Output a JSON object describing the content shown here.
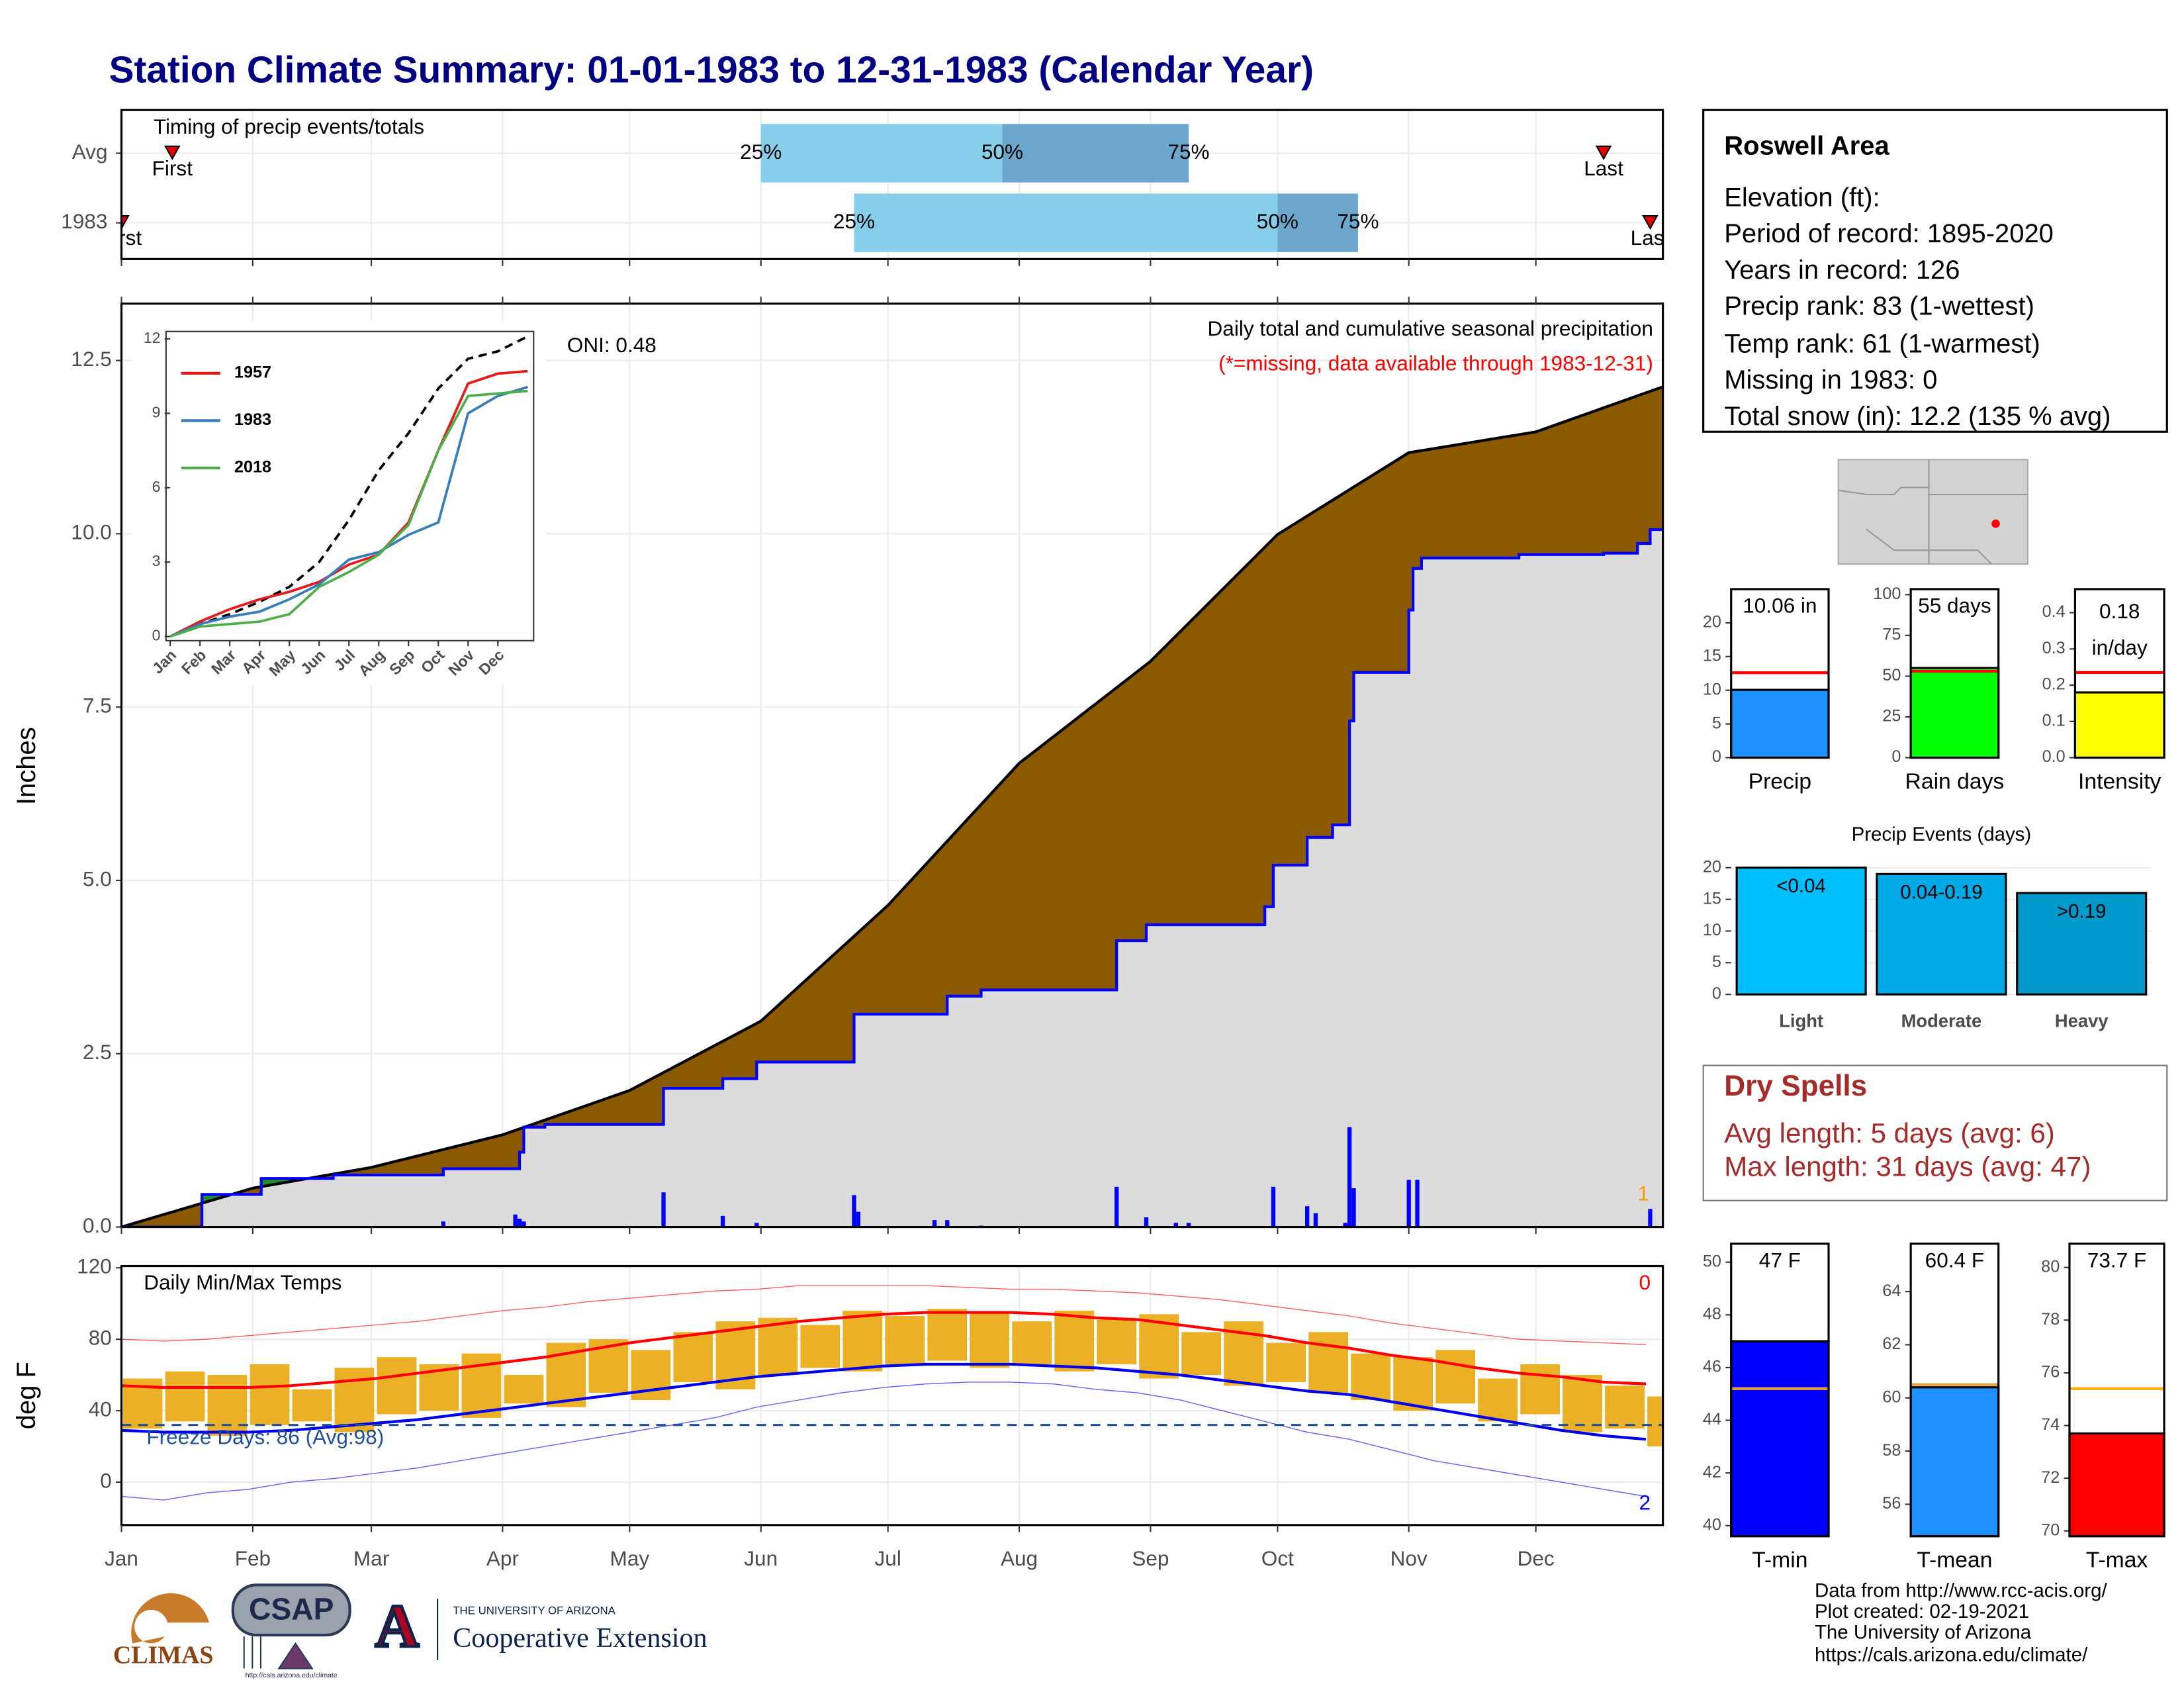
{
  "title": "Station Climate Summary: 01-01-1983 to 12-31-1983 (Calendar Year)",
  "info": {
    "title": "Roswell Area",
    "lines": [
      "Elevation (ft):",
      "Period of record: 1895-2020",
      "Years in record: 126",
      "Precip rank: 83 (1-wettest)",
      "Temp rank: 61 (1-warmest)",
      "Missing in 1983: 0",
      "Total snow (in): 12.2 (135 % avg)"
    ]
  },
  "dry_spells": {
    "title": "Dry Spells",
    "lines": [
      "Avg length: 5 days (avg: 6)",
      "Max length: 31 days (avg: 47)"
    ]
  },
  "footer": [
    "Data from http://www.rcc-acis.org/",
    "Plot created: 02-19-2021",
    "The University of Arizona",
    "https://cals.arizona.edu/climate/"
  ],
  "logos": {
    "climas": "CLIMAS",
    "csap": "CSAP",
    "csap_url": "http://cals.arizona.edu/climate",
    "ua_top": "THE UNIVERSITY OF ARIZONA",
    "ua_name": "Cooperative Extension"
  },
  "chart_data": [
    {
      "type": "timing",
      "title": "Timing of precip events/totals",
      "categories": [
        "Avg",
        "1983"
      ],
      "xlim": [
        0,
        364
      ],
      "first": [
        12,
        0
      ],
      "first_label": "First",
      "last": [
        350,
        361
      ],
      "last_label": "Last",
      "quartiles": [
        {
          "label": "25%",
          "values": [
            151,
            173
          ]
        },
        {
          "label": "50%",
          "values": [
            208,
            273
          ]
        },
        {
          "label": "75%",
          "values": [
            252,
            292
          ]
        }
      ],
      "colors": [
        "#87ceeb",
        "#6ca6cd"
      ],
      "marker_color": "#e00000"
    },
    {
      "type": "cumulative",
      "title": "Daily total and cumulative seasonal precipitation",
      "subtitle": "(*=missing, data available through 1983-12-31)",
      "annotation": "ONI: 0.48",
      "ylabel": "Inches",
      "count_label": "1",
      "xlim": [
        0,
        364
      ],
      "ylim": [
        0,
        13.32
      ],
      "yticks": [
        {
          "value": 0,
          "label": "0.0"
        },
        2.5,
        {
          "value": 5,
          "label": "5.0"
        },
        7.5,
        {
          "value": 10,
          "label": "10.0"
        },
        12.5
      ],
      "grid": true,
      "series": [
        {
          "x": [
            0,
            31,
            59,
            90,
            120,
            151,
            181,
            212,
            243,
            273,
            304,
            334,
            364
          ],
          "values": [
            0,
            0.56,
            0.86,
            1.33,
            1.97,
            2.97,
            4.64,
            6.69,
            8.16,
            9.99,
            11.17,
            11.47,
            12.12
          ],
          "color": "#000000",
          "fill": "#8b5a00"
        },
        {
          "x": [
            0,
            19,
            33,
            50,
            76,
            94,
            95,
            100,
            128,
            142,
            150,
            173,
            195,
            203,
            235,
            242,
            270,
            272,
            280,
            286,
            290,
            291,
            304,
            305,
            307,
            330,
            350,
            358,
            361,
            364
          ],
          "values": [
            0,
            0.47,
            0.7,
            0.75,
            0.84,
            1.08,
            1.44,
            1.48,
            2.0,
            2.14,
            2.38,
            3.07,
            3.33,
            3.42,
            4.13,
            4.36,
            4.62,
            5.22,
            5.62,
            5.8,
            7.3,
            8.0,
            8.9,
            9.5,
            9.65,
            9.7,
            9.72,
            9.86,
            10.06,
            10.06
          ],
          "color": "#0000ff",
          "fill": "#dcdcdc",
          "above_fill": "#1f8f1f"
        }
      ],
      "daily": {
        "x": [
          76,
          93,
          94,
          95,
          128,
          142,
          150,
          173,
          174,
          192,
          195,
          203,
          235,
          242,
          249,
          252,
          272,
          280,
          282,
          289,
          290,
          291,
          304,
          306,
          361
        ],
        "values": [
          0.08,
          0.18,
          0.12,
          0.08,
          0.5,
          0.16,
          0.06,
          0.46,
          0.22,
          0.1,
          0.1,
          0.02,
          0.58,
          0.14,
          0.06,
          0.06,
          0.58,
          0.3,
          0.2,
          0.06,
          1.44,
          0.56,
          0.68,
          0.68,
          0.26
        ],
        "color": "#0000ff"
      }
    },
    {
      "type": "line",
      "x": [
        0,
        1,
        2,
        3,
        4,
        5,
        6,
        7,
        8,
        9,
        10,
        11,
        12
      ],
      "xlim": [
        0,
        12.2
      ],
      "ylim": [
        0,
        12.3
      ],
      "xticks": [
        {
          "value": 0,
          "label": "Jan"
        },
        {
          "value": 1,
          "label": "Feb"
        },
        {
          "value": 2,
          "label": "Mar"
        },
        {
          "value": 3,
          "label": "Apr"
        },
        {
          "value": 4,
          "label": "May"
        },
        {
          "value": 5,
          "label": "Jun"
        },
        {
          "value": 6,
          "label": "Jul"
        },
        {
          "value": 7,
          "label": "Aug"
        },
        {
          "value": 8,
          "label": "Sep"
        },
        {
          "value": 9,
          "label": "Oct"
        },
        {
          "value": 10,
          "label": "Nov"
        },
        {
          "value": 11,
          "label": "Dec"
        }
      ],
      "yticks": [
        0,
        3,
        6,
        9,
        12
      ],
      "series": [
        {
          "values": [
            0,
            0.5,
            0.9,
            1.4,
            2.0,
            3.0,
            4.7,
            6.7,
            8.2,
            10.0,
            11.2,
            11.5,
            12.1
          ],
          "color": "#000000",
          "dash": true
        },
        {
          "name": "1957",
          "values": [
            0,
            0.6,
            1.1,
            1.5,
            1.8,
            2.2,
            2.9,
            3.3,
            4.6,
            7.5,
            10.2,
            10.6,
            10.7
          ],
          "color": "#e41a1c"
        },
        {
          "name": "1983",
          "values": [
            0,
            0.5,
            0.8,
            1.0,
            1.5,
            2.1,
            3.1,
            3.4,
            4.1,
            4.6,
            9.0,
            9.7,
            10.06
          ],
          "color": "#377eb8"
        },
        {
          "name": "2018",
          "values": [
            0,
            0.4,
            0.5,
            0.6,
            0.9,
            2.0,
            2.6,
            3.3,
            4.5,
            7.5,
            9.7,
            9.8,
            9.9
          ],
          "color": "#4daf4a"
        }
      ]
    },
    {
      "type": "range",
      "title": "Daily Min/Max Temps",
      "ylabel": "deg F",
      "annotation": "Freeze Days: 86 (Avg:98)",
      "freeze": 32,
      "max_record_count": 0,
      "min_record_count": 2,
      "xlim": [
        0,
        364
      ],
      "xticks": [
        {
          "value": 0,
          "label": "Jan"
        },
        {
          "value": 31,
          "label": "Feb"
        },
        {
          "value": 59,
          "label": "Mar"
        },
        {
          "value": 90,
          "label": "Apr"
        },
        {
          "value": 120,
          "label": "May"
        },
        {
          "value": 151,
          "label": "Jun"
        },
        {
          "value": 181,
          "label": "Jul"
        },
        {
          "value": 212,
          "label": "Aug"
        },
        {
          "value": 243,
          "label": "Sep"
        },
        {
          "value": 273,
          "label": "Oct"
        },
        {
          "value": 304,
          "label": "Nov"
        },
        {
          "value": 334,
          "label": "Dec"
        }
      ],
      "ylim": [
        -24,
        121
      ],
      "yticks": [
        0,
        40,
        80,
        120
      ],
      "grid": true,
      "x": [
        0,
        10,
        20,
        30,
        40,
        50,
        60,
        70,
        80,
        90,
        100,
        110,
        120,
        130,
        140,
        150,
        160,
        170,
        180,
        190,
        200,
        210,
        220,
        230,
        240,
        250,
        260,
        270,
        280,
        290,
        300,
        310,
        320,
        330,
        340,
        350,
        360
      ],
      "max": [
        58,
        62,
        60,
        66,
        52,
        64,
        70,
        66,
        72,
        60,
        78,
        80,
        74,
        84,
        90,
        92,
        88,
        96,
        93,
        97,
        95,
        90,
        96,
        91,
        94,
        84,
        90,
        78,
        84,
        72,
        70,
        74,
        58,
        66,
        60,
        54,
        48
      ],
      "min": [
        30,
        34,
        26,
        32,
        34,
        28,
        38,
        40,
        36,
        44,
        42,
        50,
        46,
        56,
        52,
        60,
        64,
        62,
        66,
        68,
        64,
        66,
        62,
        66,
        58,
        60,
        54,
        56,
        50,
        46,
        40,
        44,
        34,
        38,
        28,
        30,
        20
      ],
      "avg_max": [
        54,
        53,
        53,
        53,
        54,
        56,
        58,
        61,
        64,
        67,
        70,
        74,
        78,
        81,
        84,
        87,
        90,
        92,
        94,
        95,
        95,
        95,
        94,
        92,
        91,
        88,
        85,
        82,
        78,
        75,
        71,
        68,
        64,
        61,
        59,
        56,
        55
      ],
      "avg_min": [
        29,
        28,
        28,
        28,
        29,
        31,
        33,
        35,
        38,
        41,
        44,
        47,
        50,
        53,
        56,
        59,
        61,
        63,
        65,
        66,
        66,
        66,
        65,
        64,
        62,
        60,
        57,
        54,
        51,
        49,
        45,
        41,
        37,
        33,
        29,
        26,
        24
      ],
      "record_max": [
        80,
        79,
        80,
        82,
        84,
        86,
        88,
        90,
        93,
        96,
        98,
        101,
        103,
        105,
        107,
        108,
        110,
        110,
        110,
        110,
        109,
        108,
        108,
        107,
        106,
        104,
        102,
        99,
        96,
        93,
        89,
        86,
        83,
        80,
        79,
        78,
        77
      ],
      "record_min": [
        -8,
        -10,
        -6,
        -4,
        0,
        2,
        5,
        8,
        12,
        16,
        20,
        24,
        28,
        32,
        36,
        42,
        46,
        50,
        53,
        55,
        56,
        56,
        55,
        52,
        50,
        46,
        40,
        34,
        28,
        24,
        18,
        12,
        8,
        4,
        0,
        -4,
        -8
      ],
      "bar_color": "#ebb026",
      "max_color": "#ff0000",
      "min_color": "#0000ee",
      "freeze_color": "#1f4e9a"
    },
    {
      "type": "bar",
      "categories": [
        "Precip"
      ],
      "values": [
        10.06
      ],
      "value_labels": [
        "10.06 in"
      ],
      "average": 12.6,
      "average_color": "#ff0000",
      "color": "#1e90ff",
      "ylim": [
        0,
        25
      ],
      "yticks": [
        0,
        5,
        10,
        15,
        20
      ]
    },
    {
      "type": "bar",
      "categories": [
        "Rain days"
      ],
      "values": [
        55
      ],
      "value_labels": [
        "55 days"
      ],
      "average": 53,
      "average_color": "#ff0000",
      "color": "#00ff00",
      "ylim": [
        0,
        103.4
      ],
      "yticks": [
        0,
        25,
        50,
        75,
        100
      ]
    },
    {
      "type": "bar",
      "categories": [
        "Intensity"
      ],
      "values": [
        0.18
      ],
      "unit_label": "in/day",
      "average": 0.235,
      "average_color": "#ff0000",
      "color": "#ffff00",
      "ylim": [
        0,
        0.465
      ],
      "yticks": [
        {
          "value": 0,
          "label": "0.0"
        },
        0.1,
        0.2,
        0.3,
        0.4
      ]
    },
    {
      "type": "bar",
      "title": "Precip Events (days)",
      "categories": [
        "Light",
        "Moderate",
        "Heavy"
      ],
      "bin_labels": [
        "<0.04",
        "0.04-0.19",
        ">0.19"
      ],
      "values": [
        20,
        19,
        16
      ],
      "colors": [
        "#00bfff",
        "#00a9e6",
        "#0099cc"
      ],
      "ylim": [
        0,
        22.2
      ],
      "yticks": [
        0,
        5,
        10,
        15,
        20
      ],
      "grid": true
    },
    {
      "type": "bar",
      "categories": [
        "T-min"
      ],
      "values": [
        47
      ],
      "value_labels": [
        "47 F"
      ],
      "average": 45.2,
      "average_color": "#e6a040",
      "color": "#0000ff",
      "ylim": [
        39.6,
        50.7
      ],
      "yticks": [
        40,
        42,
        44,
        46,
        48,
        50
      ]
    },
    {
      "type": "bar",
      "categories": [
        "T-mean"
      ],
      "values": [
        60.4
      ],
      "value_labels": [
        "60.4 F"
      ],
      "average": 60.5,
      "average_color": "#e6a040",
      "color": "#1e90ff",
      "ylim": [
        54.8,
        65.8
      ],
      "yticks": [
        56,
        58,
        60,
        62,
        64
      ]
    },
    {
      "type": "bar",
      "categories": [
        "T-max"
      ],
      "values": [
        73.7
      ],
      "value_labels": [
        "73.7 F"
      ],
      "average": 75.4,
      "average_color": "#ffb000",
      "color": "#ff0000",
      "ylim": [
        69.8,
        80.9
      ],
      "yticks": [
        70,
        72,
        74,
        76,
        78,
        80
      ]
    }
  ]
}
